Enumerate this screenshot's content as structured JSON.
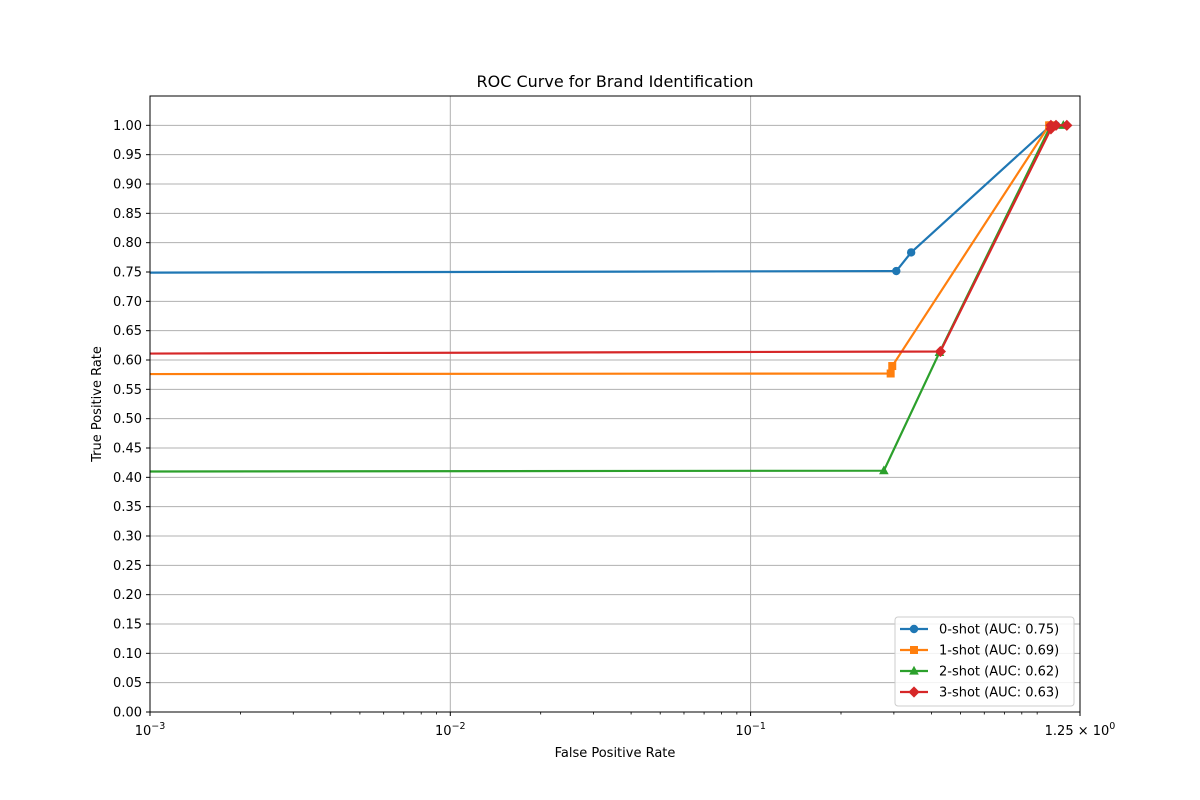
{
  "chart_data": {
    "type": "line",
    "title": "ROC Curve for Brand Identification",
    "xlabel": "False Positive Rate",
    "ylabel": "True Positive Rate",
    "xscale": "log",
    "xlim": [
      0.001,
      1.25
    ],
    "ylim": [
      0.0,
      1.05
    ],
    "x_ticks": [
      {
        "value": 0.001,
        "label": "10^-3"
      },
      {
        "value": 0.01,
        "label": "10^-2"
      },
      {
        "value": 0.1,
        "label": "10^-1"
      },
      {
        "value": 1.25,
        "label": "1.25 × 10^0"
      }
    ],
    "y_ticks": [
      "0.00",
      "0.05",
      "0.10",
      "0.15",
      "0.20",
      "0.25",
      "0.30",
      "0.35",
      "0.40",
      "0.45",
      "0.50",
      "0.55",
      "0.60",
      "0.65",
      "0.70",
      "0.75",
      "0.80",
      "0.85",
      "0.90",
      "0.95",
      "1.00"
    ],
    "grid": true,
    "legend_position": "lower-right",
    "series": [
      {
        "name": "0-shot (AUC: 0.75)",
        "color": "#1f77b4",
        "marker": "circle",
        "line_start": {
          "x": 0.001,
          "y": 0.749
        },
        "points": [
          {
            "x": 0.3056,
            "y": 0.7516
          },
          {
            "x": 0.3425,
            "y": 0.7834
          },
          {
            "x": 1.0,
            "y": 1.0
          },
          {
            "x": 1.04,
            "y": 1.0
          }
        ]
      },
      {
        "name": "1-shot (AUC: 0.69)",
        "color": "#ff7f0e",
        "marker": "square",
        "line_start": {
          "x": 0.001,
          "y": 0.576
        },
        "points": [
          {
            "x": 0.2927,
            "y": 0.577
          },
          {
            "x": 0.2963,
            "y": 0.5897
          },
          {
            "x": 0.9865,
            "y": 1.0
          },
          {
            "x": 1.0,
            "y": 1.0
          }
        ]
      },
      {
        "name": "2-shot (AUC: 0.62)",
        "color": "#2ca02c",
        "marker": "triangle",
        "line_start": {
          "x": 0.001,
          "y": 0.41
        },
        "points": [
          {
            "x": 0.2778,
            "y": 0.4113
          },
          {
            "x": 0.4255,
            "y": 0.6129
          },
          {
            "x": 1.0,
            "y": 1.0
          },
          {
            "x": 1.1,
            "y": 1.0
          }
        ]
      },
      {
        "name": "3-shot (AUC: 0.63)",
        "color": "#d62728",
        "marker": "diamond",
        "line_start": {
          "x": 0.001,
          "y": 0.611
        },
        "points": [
          {
            "x": 0.4286,
            "y": 0.6145
          },
          {
            "x": 1.0,
            "y": 0.994
          },
          {
            "x": 1.0,
            "y": 1.0
          },
          {
            "x": 1.04,
            "y": 1.0
          },
          {
            "x": 1.13,
            "y": 1.0
          }
        ]
      }
    ]
  }
}
